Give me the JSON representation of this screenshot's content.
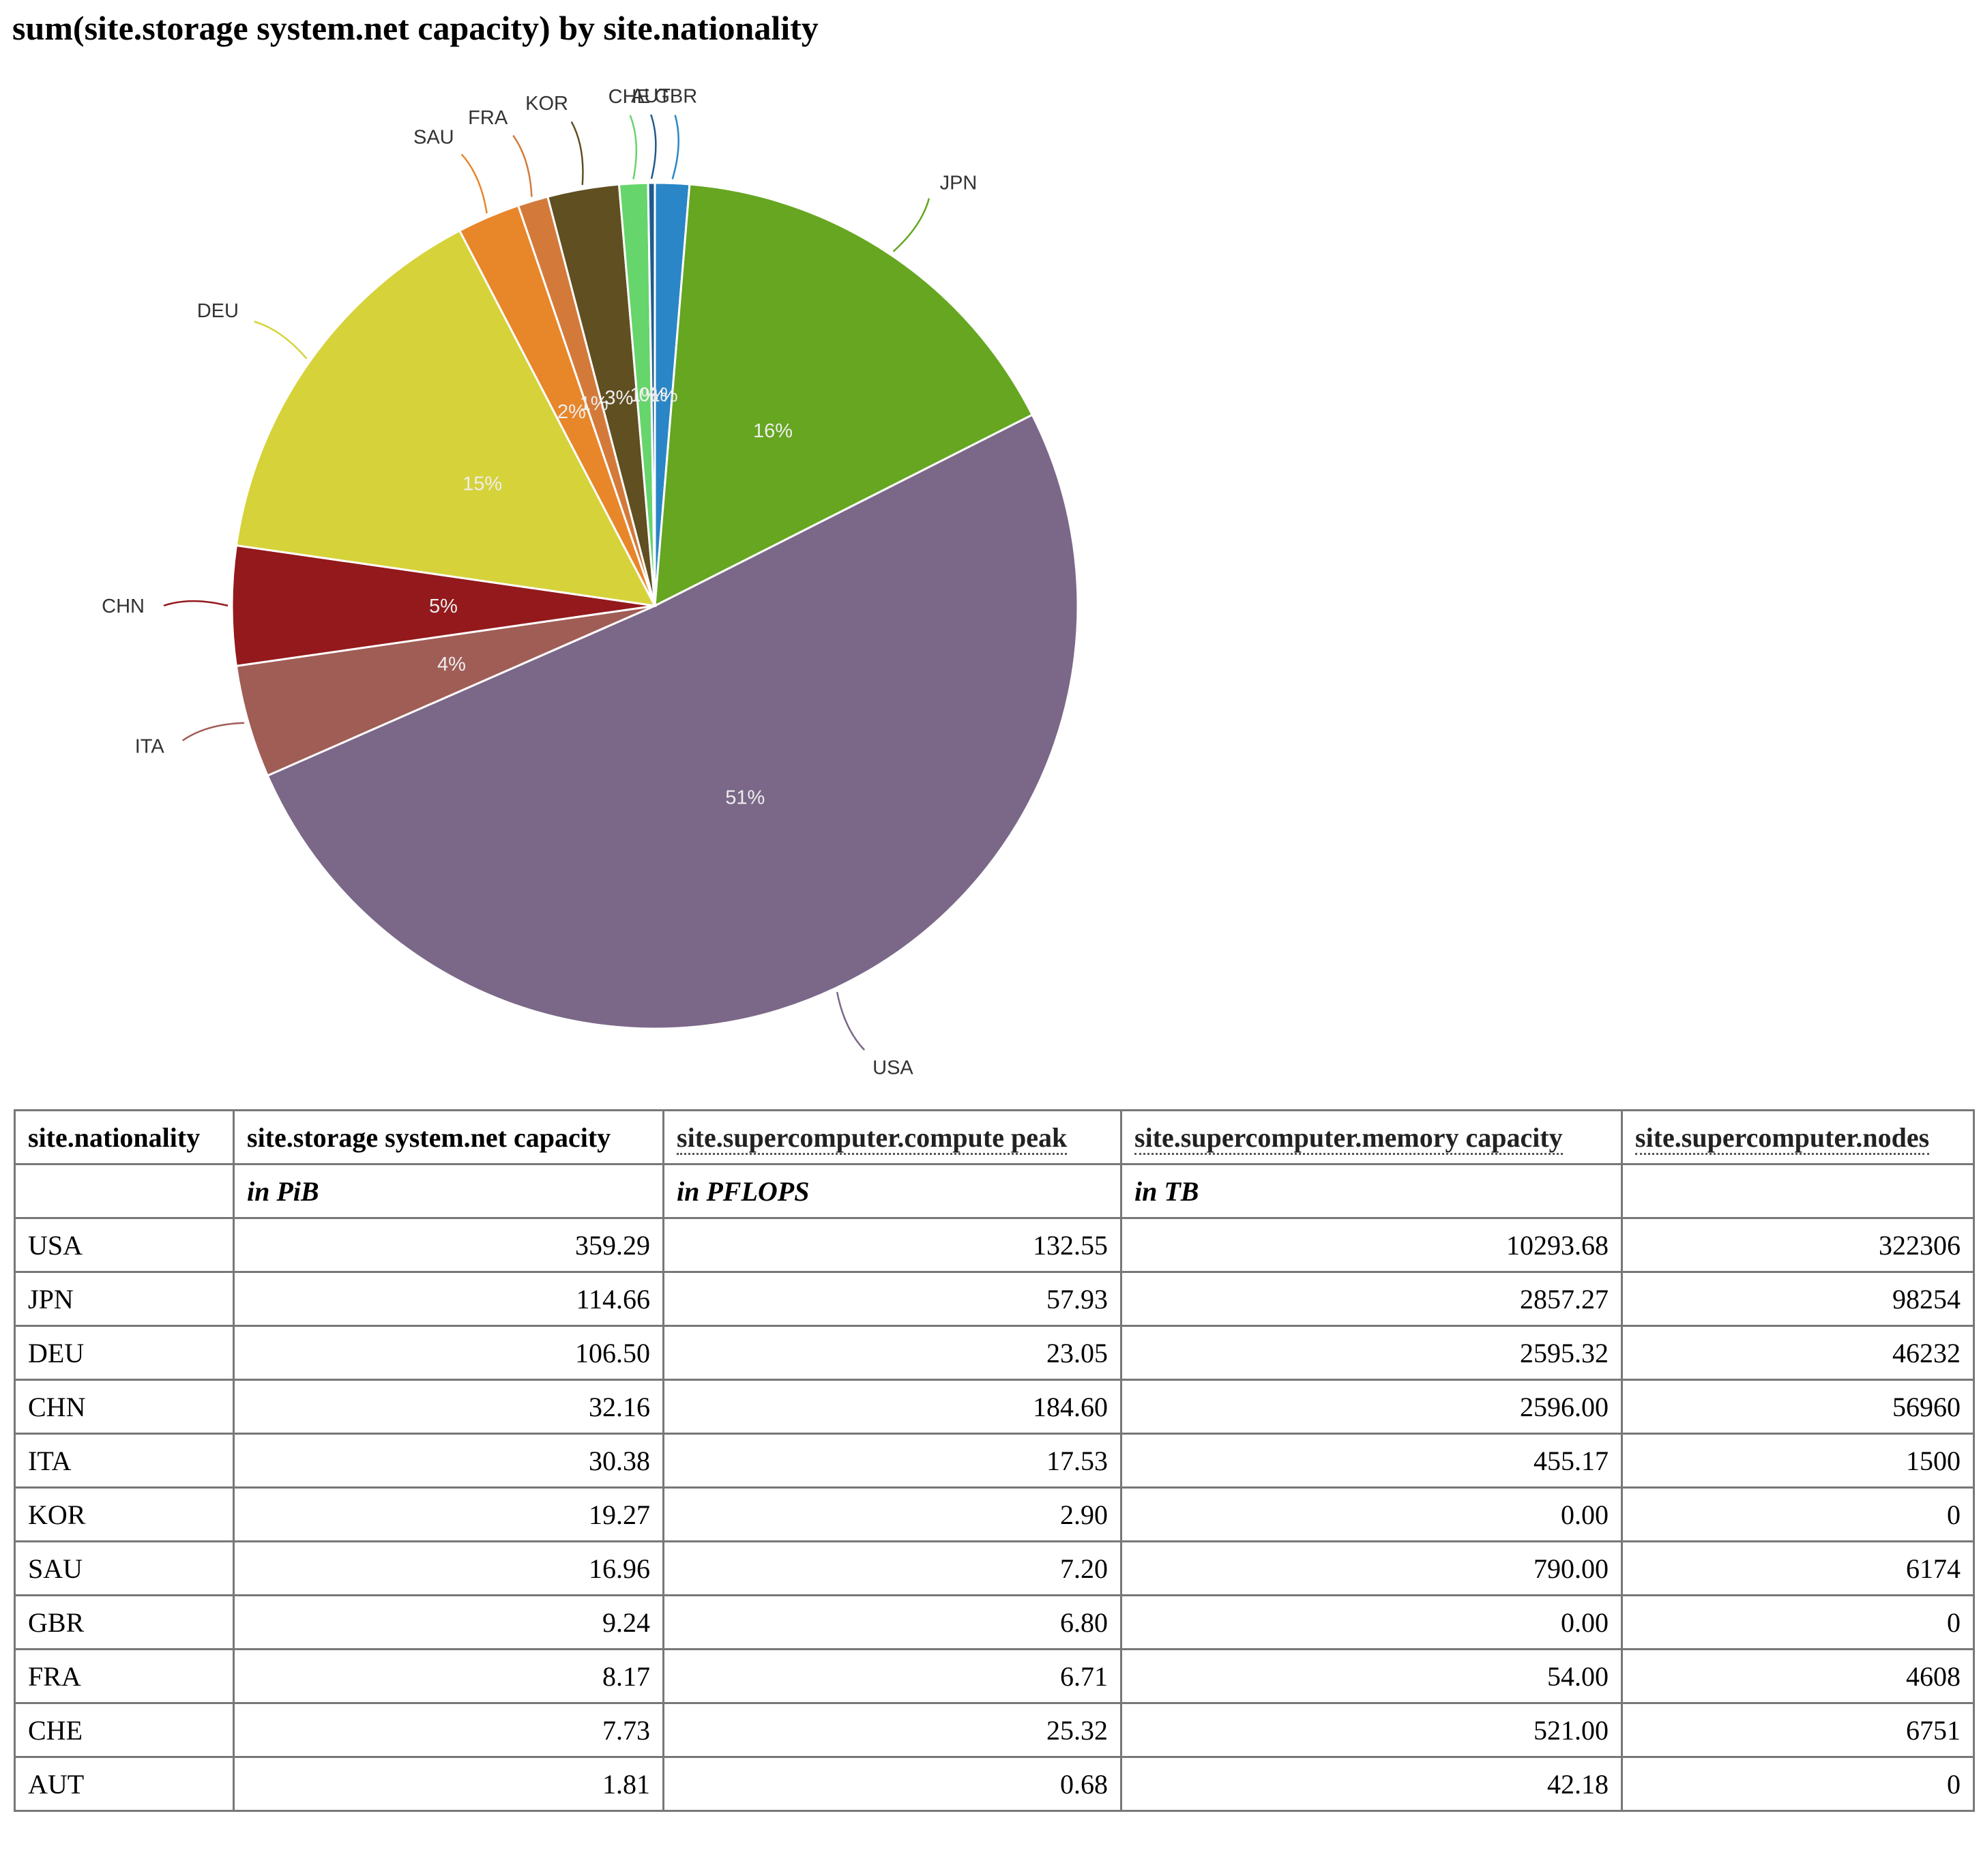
{
  "title": "sum(site.storage system.net capacity) by site.nationality",
  "chart_data": {
    "type": "pie",
    "title": "sum(site.storage system.net capacity) by site.nationality",
    "categories": [
      "GBR",
      "JPN",
      "USA",
      "ITA",
      "CHN",
      "DEU",
      "SAU",
      "FRA",
      "KOR",
      "CHE",
      "AUT"
    ],
    "values": [
      9.24,
      114.66,
      359.29,
      30.38,
      32.16,
      106.5,
      16.96,
      8.17,
      19.27,
      7.73,
      1.81
    ],
    "percent_labels": [
      "1%",
      "16%",
      "51%",
      "4%",
      "5%",
      "15%",
      "2%",
      "1%",
      "3%",
      "1%",
      "0%"
    ],
    "colors": [
      "#2a86c6",
      "#66a621",
      "#7b6888",
      "#a05d56",
      "#93191c",
      "#d6d23a",
      "#e8862a",
      "#d37a3b",
      "#5f4f21",
      "#66d56c",
      "#1f5b8c"
    ],
    "start_angle": "12 o'clock, clockwise"
  },
  "table": {
    "headers": [
      {
        "label": "site.nationality",
        "linked": false
      },
      {
        "label": "site.storage system.net capacity",
        "linked": false
      },
      {
        "label": "site.supercomputer.compute peak",
        "linked": true
      },
      {
        "label": "site.supercomputer.memory capacity",
        "linked": true
      },
      {
        "label": "site.supercomputer.nodes",
        "linked": true
      }
    ],
    "units": [
      "",
      "in PiB",
      "in PFLOPS",
      "in TB",
      ""
    ],
    "rows": [
      [
        "USA",
        "359.29",
        "132.55",
        "10293.68",
        "322306"
      ],
      [
        "JPN",
        "114.66",
        "57.93",
        "2857.27",
        "98254"
      ],
      [
        "DEU",
        "106.50",
        "23.05",
        "2595.32",
        "46232"
      ],
      [
        "CHN",
        "32.16",
        "184.60",
        "2596.00",
        "56960"
      ],
      [
        "ITA",
        "30.38",
        "17.53",
        "455.17",
        "1500"
      ],
      [
        "KOR",
        "19.27",
        "2.90",
        "0.00",
        "0"
      ],
      [
        "SAU",
        "16.96",
        "7.20",
        "790.00",
        "6174"
      ],
      [
        "GBR",
        "9.24",
        "6.80",
        "0.00",
        "0"
      ],
      [
        "FRA",
        "8.17",
        "6.71",
        "54.00",
        "4608"
      ],
      [
        "CHE",
        "7.73",
        "25.32",
        "521.00",
        "6751"
      ],
      [
        "AUT",
        "1.81",
        "0.68",
        "42.18",
        "0"
      ]
    ]
  }
}
